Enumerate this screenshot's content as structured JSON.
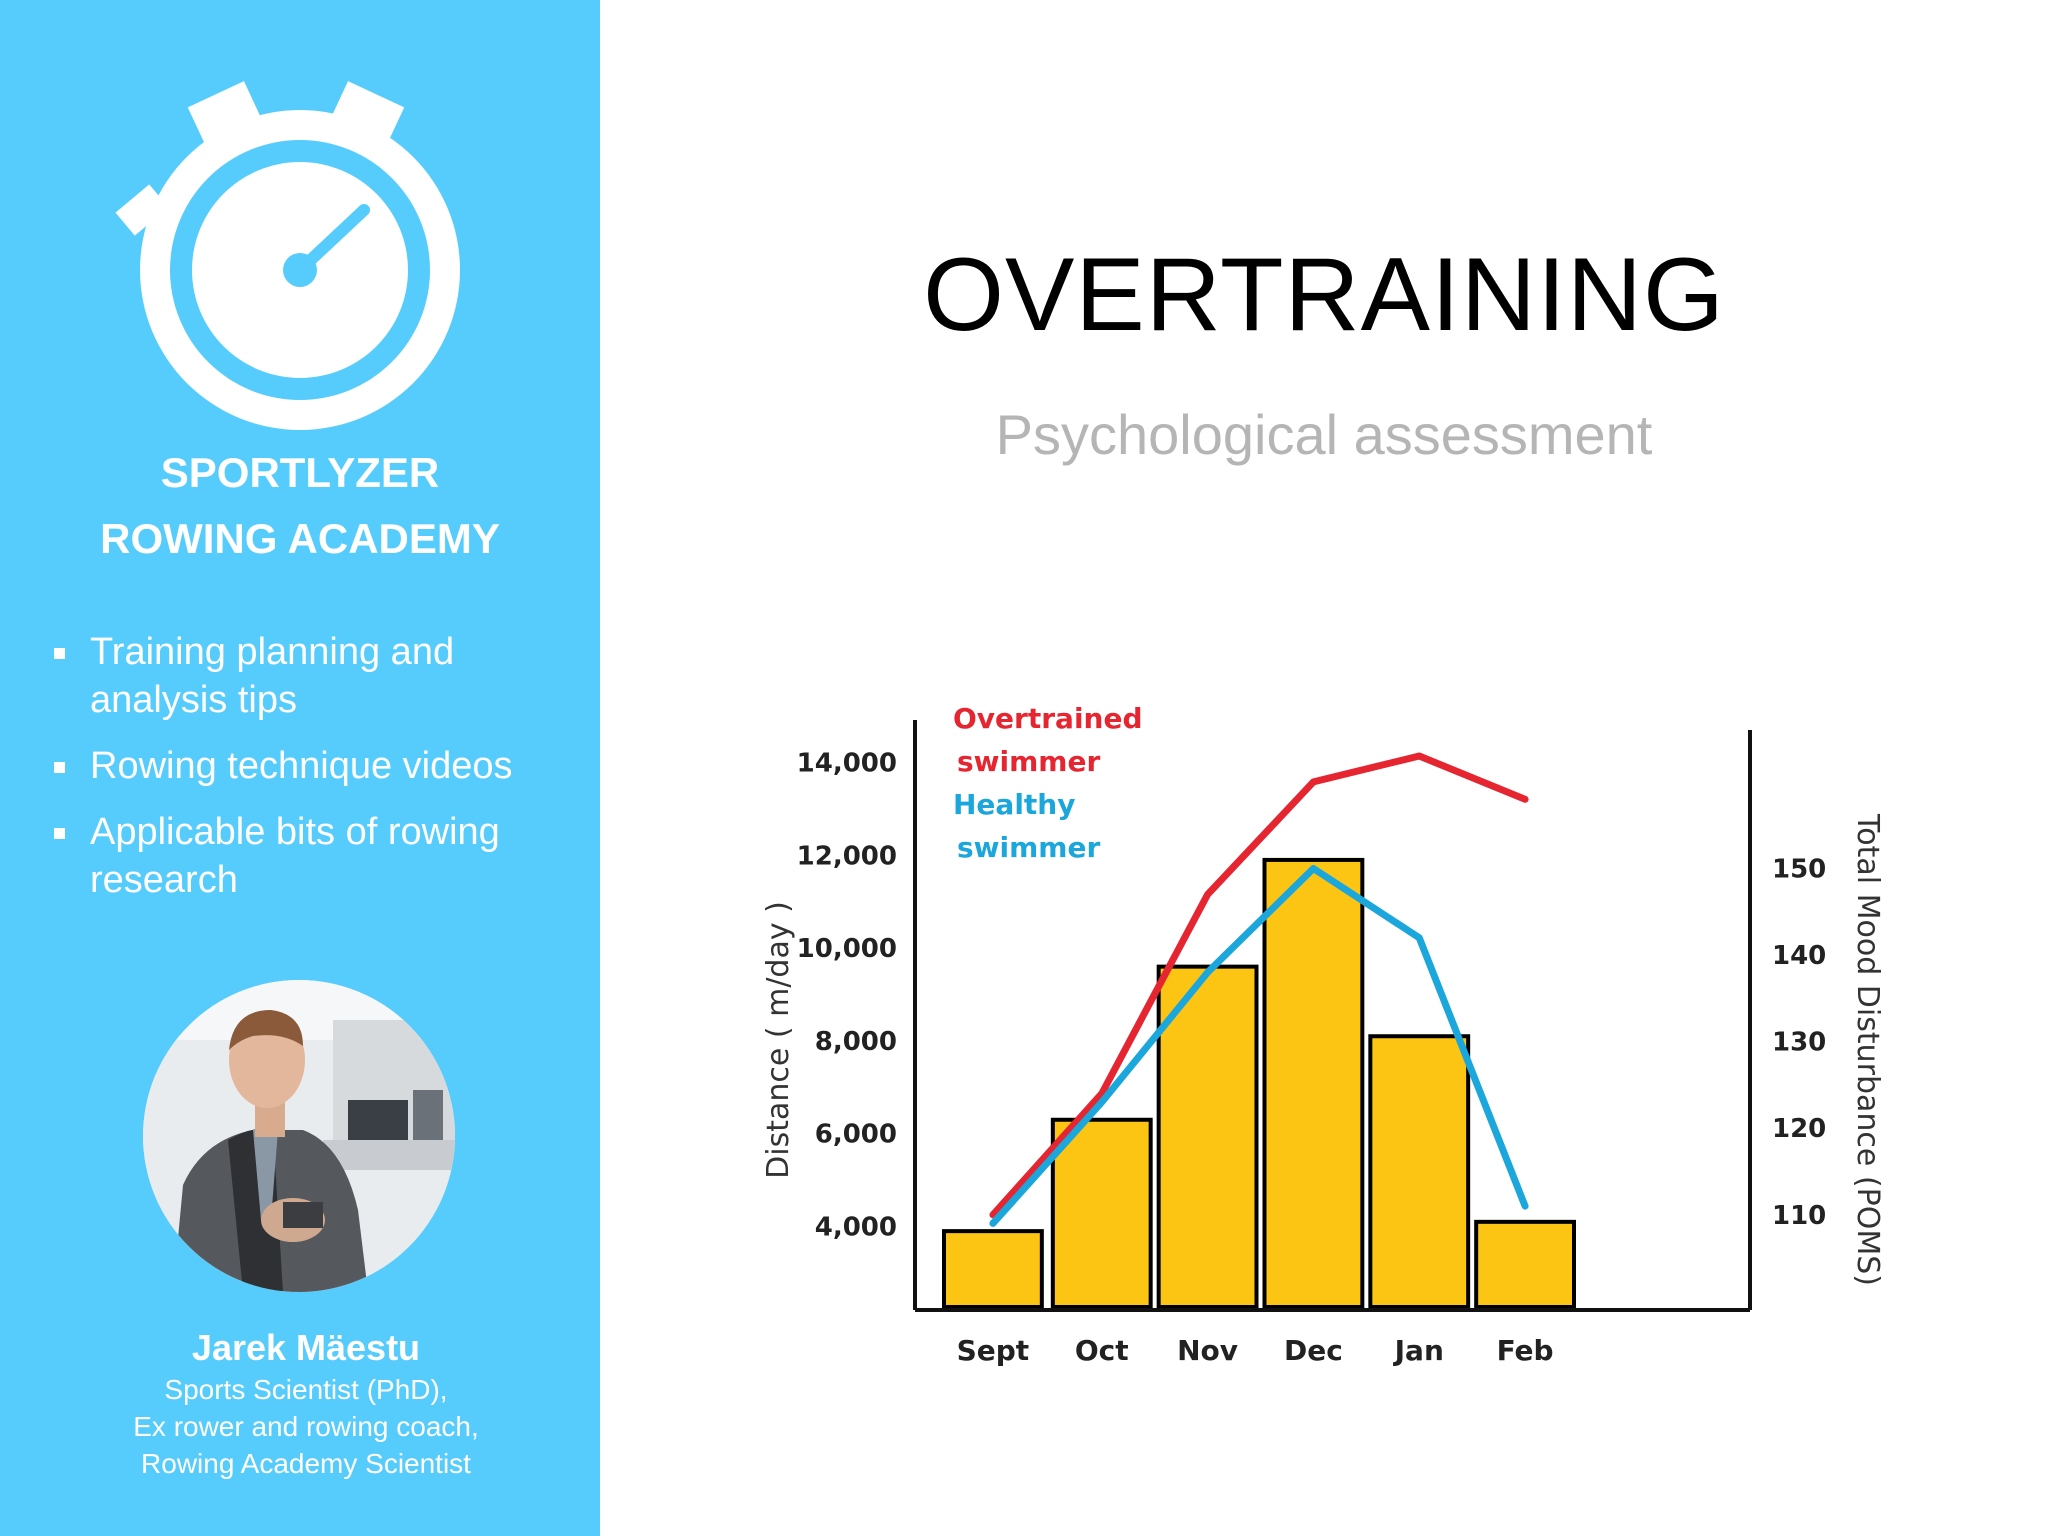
{
  "sidebar": {
    "brand": [
      "SPORTLYZER",
      "ROWING ACADEMY"
    ],
    "features": [
      "Training planning and analysis tips",
      "Rowing technique videos",
      "Applicable bits of rowing research"
    ],
    "author": {
      "name": "Jarek Mäestu",
      "roles": [
        "Sports Scientist (PhD),",
        "Ex rower and rowing coach,",
        "Rowing Academy Scientist"
      ]
    },
    "logo_icon": "stopwatch-icon",
    "colors": {
      "sidebar_bg": "#56ccfc",
      "text": "#ffffff"
    }
  },
  "slide": {
    "title": "OVERTRAINING",
    "subtitle": "Psychological assessment"
  },
  "chart_data": {
    "type": "bar",
    "title": "",
    "categories": [
      "Sept",
      "Oct",
      "Nov",
      "Dec",
      "Jan",
      "Feb"
    ],
    "bars": {
      "axis": "left",
      "values": [
        3900,
        6300,
        9600,
        11900,
        8100,
        4100
      ],
      "color": "#fdc513",
      "edge_color": "#000000"
    },
    "left_axis": {
      "label": "Distance ( m/day )",
      "ticks": [
        "4,000",
        "6,000",
        "8,000",
        "10,000",
        "12,000",
        "14,000"
      ],
      "tick_values": [
        4000,
        6000,
        8000,
        10000,
        12000,
        14000
      ],
      "range": [
        2200,
        14700
      ]
    },
    "right_axis": {
      "label": "Total Mood Disturbance (POMS)",
      "ticks": [
        "110",
        "120",
        "130",
        "140",
        "150"
      ],
      "tick_values": [
        110,
        120,
        130,
        140,
        150
      ],
      "range": [
        99,
        166
      ]
    },
    "series": [
      {
        "name": "Overtrained swimmer",
        "legend_lines": [
          "Overtrained",
          "swimmer"
        ],
        "axis": "right",
        "values": [
          110,
          124,
          147,
          160,
          163,
          158
        ],
        "color": "#e52630"
      },
      {
        "name": "Healthy swimmer",
        "legend_lines": [
          "Healthy",
          "swimmer"
        ],
        "axis": "right",
        "values": [
          109,
          123,
          138,
          150,
          142,
          111
        ],
        "color": "#1ba6dc"
      }
    ],
    "legend_position": "top-left",
    "grid": false
  }
}
